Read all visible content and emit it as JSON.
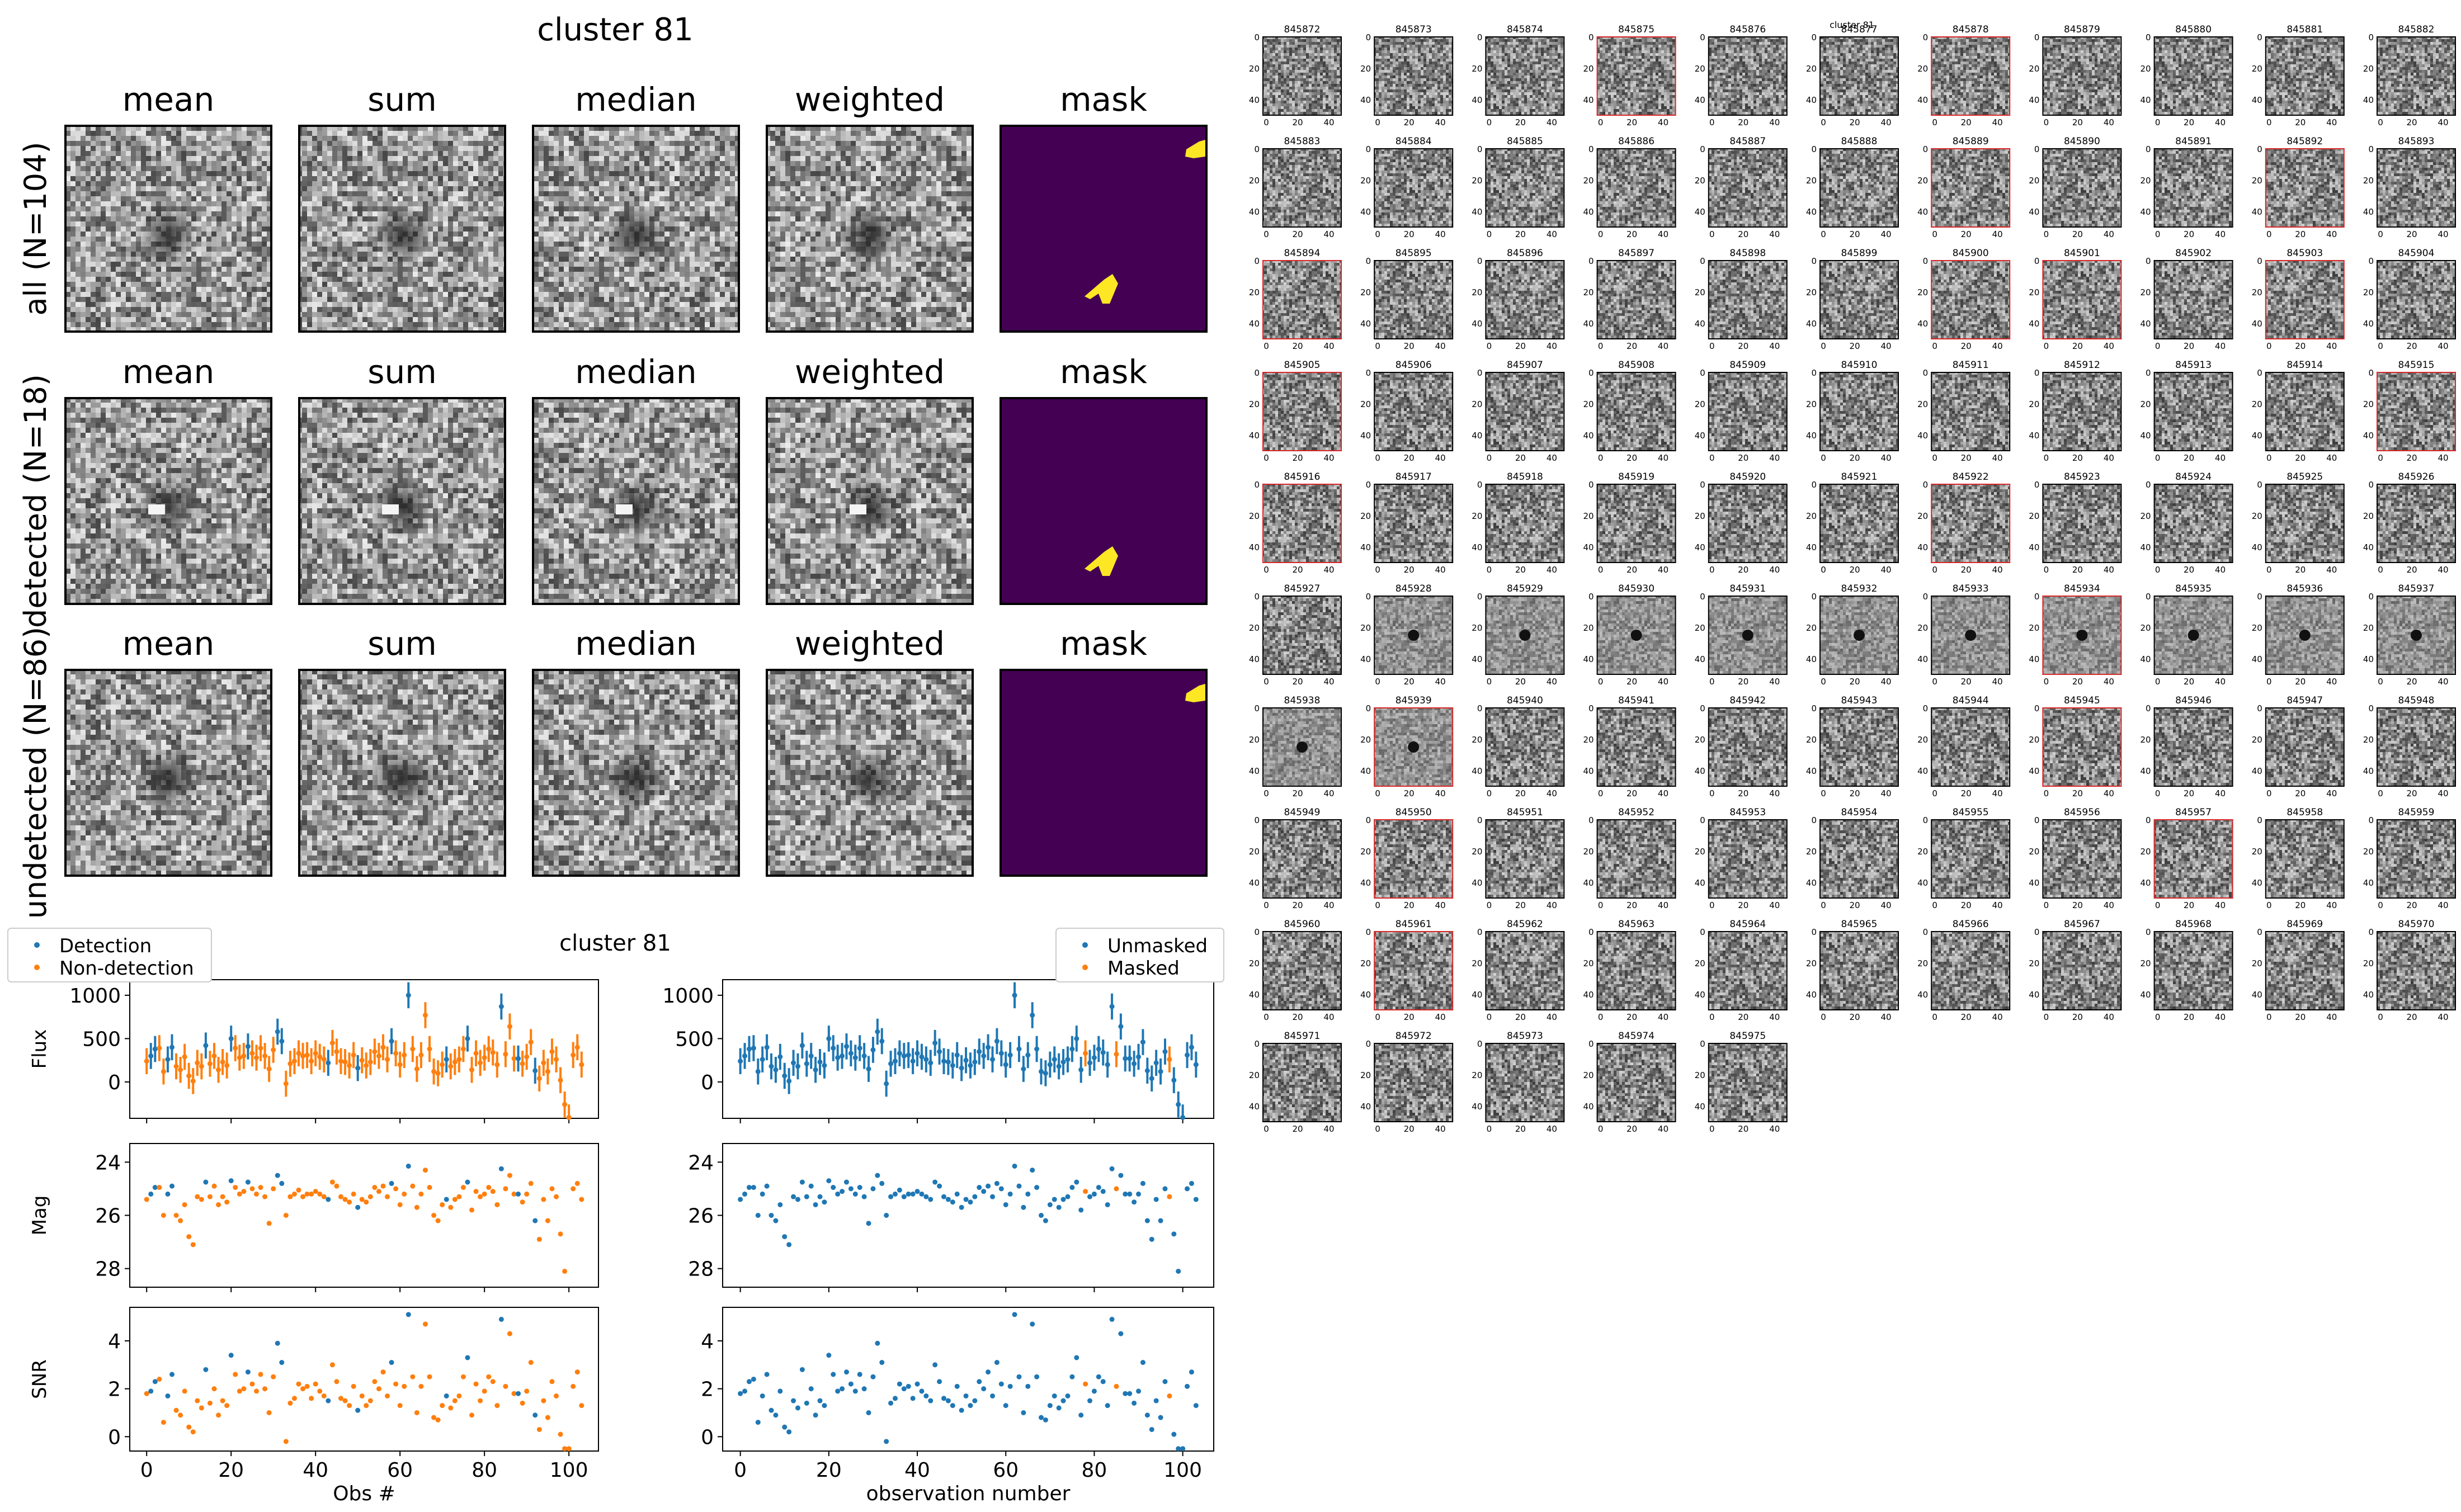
{
  "figure": {
    "stamp_title": "cluster 81",
    "lightcurve_title": "cluster 81",
    "grid_title": "cluster 81"
  },
  "stamps": {
    "columns": [
      "mean",
      "sum",
      "median",
      "weighted",
      "mask"
    ],
    "rows": [
      {
        "label": "all (N=104)",
        "key": "all"
      },
      {
        "label": "detected (N=18)",
        "key": "detected"
      },
      {
        "label": "undetected (N=86)",
        "key": "undetected"
      }
    ],
    "mask_colors": {
      "background": "#440154",
      "masked": "#fde725"
    }
  },
  "colors": {
    "blue": "#1f77b4",
    "orange": "#ff7f0e",
    "red_frame": "#d62728"
  },
  "chart_data": [
    {
      "type": "scatter",
      "title": "cluster 81",
      "panel": "left",
      "xlabel": "Obs #",
      "xlim": [
        -4,
        107
      ],
      "xticks": [
        0,
        20,
        40,
        60,
        80,
        100
      ],
      "legend": {
        "placement": "top-left",
        "entries": [
          "Detection",
          "Non-detection"
        ]
      },
      "subplots": [
        {
          "ylabel": "Flux",
          "ylim": [
            -420,
            1180
          ],
          "yticks": [
            0,
            500,
            1000
          ],
          "errorbars": true
        },
        {
          "ylabel": "Mag",
          "ylim": [
            28.7,
            23.3
          ],
          "yticks": [
            24,
            26,
            28
          ],
          "errorbars": false
        },
        {
          "ylabel": "SNR",
          "ylim": [
            -0.6,
            5.4
          ],
          "yticks": [
            0,
            2,
            4
          ],
          "errorbars": false
        }
      ],
      "series": [
        {
          "name": "Detection",
          "color": "#1f77b4",
          "indices": [
            1,
            2,
            5,
            6,
            14,
            20,
            24,
            31,
            32,
            43,
            50,
            58,
            62,
            71,
            76,
            84,
            88,
            92
          ]
        },
        {
          "name": "Non-detection",
          "color": "#ff7f0e",
          "indices": "all other observations"
        }
      ],
      "x": [
        0,
        1,
        2,
        3,
        4,
        5,
        6,
        7,
        8,
        9,
        10,
        11,
        12,
        13,
        14,
        15,
        16,
        17,
        18,
        19,
        20,
        21,
        22,
        23,
        24,
        25,
        26,
        27,
        28,
        29,
        30,
        31,
        32,
        33,
        34,
        35,
        36,
        37,
        38,
        39,
        40,
        41,
        42,
        43,
        44,
        45,
        46,
        47,
        48,
        49,
        50,
        51,
        52,
        53,
        54,
        55,
        56,
        57,
        58,
        59,
        60,
        61,
        62,
        63,
        64,
        65,
        66,
        67,
        68,
        69,
        70,
        71,
        72,
        73,
        74,
        75,
        76,
        77,
        78,
        79,
        80,
        81,
        82,
        83,
        84,
        85,
        86,
        87,
        88,
        89,
        90,
        91,
        92,
        93,
        94,
        95,
        96,
        97,
        98,
        99,
        100,
        101,
        102,
        103
      ],
      "flux": [
        240,
        300,
        380,
        390,
        120,
        260,
        400,
        180,
        140,
        290,
        70,
        10,
        220,
        180,
        420,
        210,
        300,
        140,
        230,
        190,
        500,
        390,
        280,
        300,
        410,
        330,
        280,
        390,
        300,
        150,
        370,
        580,
        470,
        -20,
        210,
        240,
        330,
        300,
        310,
        240,
        330,
        290,
        260,
        220,
        450,
        350,
        240,
        230,
        190,
        310,
        160,
        250,
        190,
        230,
        350,
        300,
        400,
        260,
        470,
        330,
        200,
        310,
        1000,
        380,
        150,
        310,
        770,
        380,
        120,
        100,
        200,
        260,
        180,
        230,
        260,
        380,
        500,
        140,
        330,
        220,
        280,
        380,
        340,
        200,
        870,
        320,
        640,
        270,
        270,
        210,
        290,
        460,
        130,
        40,
        220,
        120,
        350,
        260,
        20,
        -260,
        -410,
        310,
        400,
        200
      ],
      "flux_err": 150,
      "mag": [
        25.4,
        25.2,
        24.95,
        24.95,
        26.0,
        25.2,
        24.9,
        26.0,
        26.2,
        25.6,
        26.8,
        27.1,
        25.3,
        25.4,
        24.75,
        25.3,
        24.9,
        25.6,
        25.3,
        25.5,
        24.7,
        24.95,
        25.2,
        25.1,
        24.75,
        25.0,
        25.2,
        24.95,
        25.3,
        26.3,
        25.0,
        24.5,
        24.8,
        26.0,
        25.3,
        25.2,
        25.05,
        25.3,
        25.2,
        25.2,
        25.1,
        25.2,
        25.3,
        25.4,
        24.75,
        24.9,
        25.3,
        25.4,
        25.5,
        25.2,
        25.7,
        25.4,
        25.5,
        25.3,
        24.95,
        25.1,
        24.9,
        25.3,
        24.8,
        25.0,
        25.6,
        25.2,
        24.15,
        24.9,
        25.7,
        25.2,
        24.3,
        24.95,
        26.0,
        26.2,
        25.6,
        25.4,
        25.7,
        25.4,
        25.3,
        24.95,
        24.75,
        25.8,
        25.1,
        25.3,
        25.2,
        24.95,
        25.1,
        25.6,
        24.25,
        25.0,
        24.5,
        25.2,
        25.2,
        25.5,
        25.2,
        24.8,
        26.2,
        26.9,
        25.4,
        26.2,
        25.0,
        25.3,
        26.7,
        28.1,
        28.9,
        25.0,
        24.8,
        25.4
      ],
      "snr": [
        1.8,
        1.9,
        2.3,
        2.4,
        0.6,
        1.7,
        2.6,
        1.1,
        0.9,
        1.9,
        0.4,
        0.2,
        1.5,
        1.2,
        2.8,
        1.4,
        2.0,
        0.9,
        1.5,
        1.3,
        3.4,
        2.6,
        1.9,
        2.0,
        2.7,
        2.2,
        1.9,
        2.6,
        2.0,
        1.0,
        2.5,
        3.9,
        3.1,
        -0.2,
        1.4,
        1.6,
        2.2,
        2.0,
        2.1,
        1.6,
        2.2,
        1.9,
        1.7,
        1.5,
        3.0,
        2.3,
        1.6,
        1.5,
        1.3,
        2.1,
        1.1,
        1.7,
        1.3,
        1.5,
        2.3,
        2.0,
        2.7,
        1.7,
        3.1,
        2.2,
        1.3,
        2.1,
        5.1,
        2.5,
        1.0,
        2.1,
        4.7,
        2.5,
        0.8,
        0.7,
        1.3,
        1.7,
        1.2,
        1.5,
        1.7,
        2.5,
        3.3,
        0.9,
        2.2,
        1.5,
        1.9,
        2.5,
        2.3,
        1.3,
        4.9,
        2.1,
        4.3,
        1.8,
        1.8,
        1.4,
        1.9,
        3.1,
        0.9,
        0.3,
        1.5,
        0.8,
        2.3,
        1.7,
        0.1,
        -0.5,
        -0.5,
        2.1,
        2.7,
        1.3
      ]
    },
    {
      "type": "scatter",
      "panel": "right",
      "xlabel": "observation number",
      "xlim": [
        -4,
        107
      ],
      "xticks": [
        0,
        20,
        40,
        60,
        80,
        100
      ],
      "legend": {
        "placement": "top-right",
        "entries": [
          "Unmasked",
          "Masked"
        ]
      },
      "subplots": [
        {
          "ylabel": "",
          "ylim": [
            -420,
            1180
          ],
          "yticks": [
            0,
            500,
            1000
          ],
          "errorbars": true
        },
        {
          "ylabel": "",
          "ylim": [
            28.7,
            23.3
          ],
          "yticks": [
            24,
            26,
            28
          ],
          "errorbars": false
        },
        {
          "ylabel": "",
          "ylim": [
            -0.6,
            5.4
          ],
          "yticks": [
            0,
            2,
            4
          ],
          "errorbars": false
        }
      ],
      "series": [
        {
          "name": "Unmasked",
          "color": "#1f77b4",
          "indices": "all other observations"
        },
        {
          "name": "Masked",
          "color": "#ff7f0e",
          "indices": [
            78,
            85,
            97
          ]
        }
      ],
      "shared_values_from": "left"
    }
  ],
  "cutouts": {
    "columns": 11,
    "ids": [
      "845872",
      "845873",
      "845874",
      "845875",
      "845876",
      "845877",
      "845878",
      "845879",
      "845880",
      "845881",
      "845882",
      "845883",
      "845884",
      "845885",
      "845886",
      "845887",
      "845888",
      "845889",
      "845890",
      "845891",
      "845892",
      "845893",
      "845894",
      "845895",
      "845896",
      "845897",
      "845898",
      "845899",
      "845900",
      "845901",
      "845902",
      "845903",
      "845904",
      "845905",
      "845906",
      "845907",
      "845908",
      "845909",
      "845910",
      "845911",
      "845912",
      "845913",
      "845914",
      "845915",
      "845916",
      "845917",
      "845918",
      "845919",
      "845920",
      "845921",
      "845922",
      "845923",
      "845924",
      "845925",
      "845926",
      "845927",
      "845928",
      "845929",
      "845930",
      "845931",
      "845932",
      "845933",
      "845934",
      "845935",
      "845936",
      "845937",
      "845938",
      "845939",
      "845940",
      "845941",
      "845942",
      "845943",
      "845944",
      "845945",
      "845946",
      "845947",
      "845948",
      "845949",
      "845950",
      "845951",
      "845952",
      "845953",
      "845954",
      "845955",
      "845956",
      "845957",
      "845958",
      "845959",
      "845960",
      "845961",
      "845962",
      "845963",
      "845964",
      "845965",
      "845966",
      "845967",
      "845968",
      "845969",
      "845970",
      "845971",
      "845972",
      "845973",
      "845974",
      "845975"
    ],
    "masked_ids": [
      "845875",
      "845878",
      "845889",
      "845892",
      "845894",
      "845900",
      "845901",
      "845903",
      "845905",
      "845915",
      "845916",
      "845922",
      "845934",
      "845939",
      "845945",
      "845950",
      "845957",
      "845961"
    ],
    "source_ids": [
      "845928",
      "845929",
      "845930",
      "845931",
      "845932",
      "845933",
      "845934",
      "845935",
      "845936",
      "845937",
      "845938",
      "845939"
    ],
    "ytick_labels": [
      "0",
      "20",
      "40"
    ],
    "xtick_labels": [
      "0",
      "20",
      "40"
    ]
  }
}
